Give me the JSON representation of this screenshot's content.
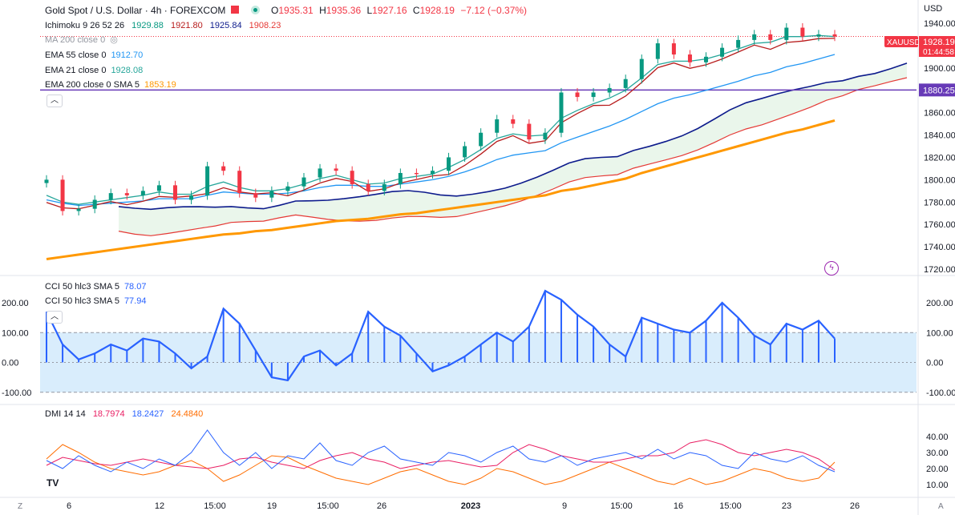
{
  "header": {
    "title": "Gold Spot / U.S. Dollar · 4h · FOREXCOM",
    "open_label": "O",
    "open": "1935.31",
    "high_label": "H",
    "high": "1935.36",
    "low_label": "L",
    "low": "1927.16",
    "close_label": "C",
    "close": "1928.19",
    "change": "−7.12 (−0.37%)"
  },
  "legends": {
    "ichimoku": {
      "name": "Ichimoku 9 26 52 26",
      "v1": "1929.88",
      "v2": "1921.80",
      "v3": "1925.84",
      "v4": "1908.23"
    },
    "ma200": {
      "name": "MA 200 close 0"
    },
    "ema55": {
      "name": "EMA 55 close 0",
      "value": "1912.70"
    },
    "ema21": {
      "name": "EMA 21 close 0",
      "value": "1928.08"
    },
    "ema200": {
      "name": "EMA 200 close 0 SMA 5",
      "value": "1853.19"
    },
    "cci1": {
      "name": "CCI 50 hlc3 SMA 5",
      "value": "78.07"
    },
    "cci2": {
      "name": "CCI 50 hlc3 SMA 5",
      "value": "77.94"
    },
    "dmi": {
      "name": "DMI 14 14",
      "v1": "18.7974",
      "v2": "18.2427",
      "v3": "24.4840"
    }
  },
  "price_scale": {
    "unit": "USD",
    "ticks": [
      "1940.00",
      "1920.00",
      "1900.00",
      "1880.00",
      "1860.00",
      "1840.00",
      "1820.00",
      "1800.00",
      "1780.00",
      "1760.00",
      "1740.00",
      "1720.00"
    ],
    "symbol_label": "XAUUSD",
    "last_price": "1928.19",
    "countdown": "01:44:58",
    "hline_label": "1880.25"
  },
  "cci_scale": {
    "ticks": [
      "200.00",
      "100.00",
      "0.00",
      "-100.00"
    ]
  },
  "dmi_scale": {
    "ticks": [
      "40.00",
      "30.00",
      "20.00",
      "10.00"
    ]
  },
  "time_axis": {
    "labels": [
      "6",
      "12",
      "15:00",
      "19",
      "15:00",
      "26",
      "2023",
      "9",
      "15:00",
      "16",
      "15:00",
      "23",
      "26"
    ],
    "left_btn": "Z",
    "right_btn": "A"
  },
  "colors": {
    "up": "#089981",
    "down": "#f23645",
    "ema55": "#2196f3",
    "ema21": "#26a69a",
    "ema200": "#ff9800",
    "kijun": "#b71c1c",
    "spanA": "#0d1b8c",
    "spanB": "#e53935",
    "cloud": "#e8f5e9",
    "hline": "#673ab7",
    "cci": "#2962ff",
    "cci_band": "#2196f3",
    "dmi_plus": "#2962ff",
    "dmi_minus": "#e91e63",
    "adx": "#ff6d00"
  },
  "chart_data": {
    "type": "line",
    "title": "Gold Spot / U.S. Dollar · 4h · FOREXCOM",
    "hline": 1880.25,
    "ylim": [
      1715,
      1950
    ],
    "x": [
      0,
      5,
      10,
      15,
      20,
      25,
      30,
      35,
      40,
      45,
      50,
      55,
      60,
      65,
      70,
      75,
      80,
      85,
      90,
      95,
      100,
      105,
      110,
      115,
      120,
      125,
      130,
      135,
      140,
      145,
      150,
      155,
      160,
      165,
      170,
      175,
      180,
      185,
      190,
      195,
      200,
      205,
      210,
      215,
      220,
      225,
      230,
      235,
      240,
      245
    ],
    "close": [
      1800,
      1772,
      1774,
      1782,
      1788,
      1786,
      1790,
      1795,
      1782,
      1786,
      1812,
      1808,
      1788,
      1784,
      1790,
      1794,
      1802,
      1810,
      1808,
      1796,
      1790,
      1796,
      1806,
      1805,
      1808,
      1820,
      1830,
      1842,
      1854,
      1850,
      1836,
      1842,
      1878,
      1874,
      1878,
      1882,
      1890,
      1908,
      1922,
      1912,
      1905,
      1910,
      1918,
      1925,
      1930,
      1925,
      1936,
      1928,
      1930,
      1928
    ],
    "series": [
      {
        "name": "EMA 21 close 0",
        "values": [
          1786,
          1780,
          1778,
          1780,
          1782,
          1784,
          1786,
          1789,
          1787,
          1787,
          1794,
          1798,
          1793,
          1790,
          1790,
          1792,
          1796,
          1801,
          1804,
          1800,
          1796,
          1797,
          1801,
          1803,
          1805,
          1811,
          1818,
          1827,
          1837,
          1841,
          1839,
          1840,
          1855,
          1862,
          1868,
          1873,
          1880,
          1891,
          1903,
          1906,
          1906,
          1908,
          1912,
          1917,
          1922,
          1923,
          1928,
          1928,
          1929,
          1928
        ]
      },
      {
        "name": "EMA 55 close 0",
        "values": [
          1782,
          1779,
          1777,
          1778,
          1779,
          1780,
          1781,
          1783,
          1783,
          1783,
          1786,
          1789,
          1788,
          1787,
          1787,
          1788,
          1790,
          1793,
          1795,
          1795,
          1794,
          1794,
          1796,
          1798,
          1800,
          1803,
          1807,
          1812,
          1818,
          1822,
          1824,
          1826,
          1833,
          1838,
          1843,
          1848,
          1854,
          1861,
          1868,
          1873,
          1876,
          1880,
          1884,
          1888,
          1893,
          1896,
          1901,
          1904,
          1908,
          1912
        ]
      },
      {
        "name": "EMA 200 close 0 SMA 5",
        "values": [
          1729,
          1731,
          1733,
          1735,
          1737,
          1739,
          1741,
          1743,
          1745,
          1747,
          1749,
          1751,
          1752,
          1754,
          1755,
          1757,
          1759,
          1761,
          1763,
          1764,
          1765,
          1767,
          1769,
          1770,
          1772,
          1774,
          1776,
          1778,
          1780,
          1782,
          1784,
          1786,
          1790,
          1792,
          1795,
          1798,
          1801,
          1806,
          1810,
          1814,
          1818,
          1822,
          1826,
          1830,
          1834,
          1838,
          1842,
          1845,
          1849,
          1853
        ]
      }
    ]
  },
  "cci_data": {
    "ylim": [
      -110,
      250
    ],
    "values": [
      170,
      60,
      10,
      30,
      60,
      40,
      80,
      70,
      30,
      -20,
      20,
      180,
      130,
      40,
      -50,
      -60,
      20,
      40,
      -10,
      30,
      170,
      120,
      90,
      30,
      -30,
      -10,
      20,
      60,
      100,
      70,
      120,
      240,
      210,
      160,
      120,
      60,
      20,
      150,
      130,
      110,
      100,
      140,
      200,
      150,
      90,
      60,
      130,
      110,
      140,
      80
    ]
  },
  "dmi_data": {
    "ylim": [
      5,
      45
    ],
    "plus": [
      25,
      20,
      28,
      22,
      18,
      24,
      20,
      26,
      22,
      30,
      44,
      30,
      22,
      30,
      20,
      28,
      26,
      36,
      25,
      22,
      30,
      34,
      26,
      24,
      22,
      30,
      28,
      24,
      30,
      34,
      26,
      24,
      28,
      22,
      26,
      28,
      30,
      26,
      32,
      26,
      30,
      28,
      22,
      20,
      30,
      26,
      24,
      28,
      22,
      18
    ],
    "minus": [
      22,
      27,
      25,
      23,
      22,
      24,
      26,
      24,
      22,
      21,
      20,
      22,
      26,
      27,
      24,
      22,
      20,
      25,
      28,
      30,
      26,
      24,
      20,
      22,
      24,
      25,
      23,
      21,
      22,
      30,
      35,
      32,
      28,
      26,
      24,
      24,
      26,
      28,
      28,
      30,
      36,
      38,
      35,
      30,
      28,
      30,
      32,
      30,
      26,
      19
    ],
    "adx": [
      26,
      35,
      30,
      24,
      20,
      18,
      16,
      18,
      22,
      25,
      20,
      12,
      16,
      22,
      28,
      27,
      22,
      18,
      14,
      12,
      10,
      14,
      18,
      20,
      16,
      12,
      10,
      14,
      20,
      18,
      14,
      10,
      12,
      16,
      20,
      24,
      20,
      16,
      12,
      10,
      14,
      10,
      12,
      16,
      20,
      18,
      14,
      12,
      14,
      24
    ]
  }
}
